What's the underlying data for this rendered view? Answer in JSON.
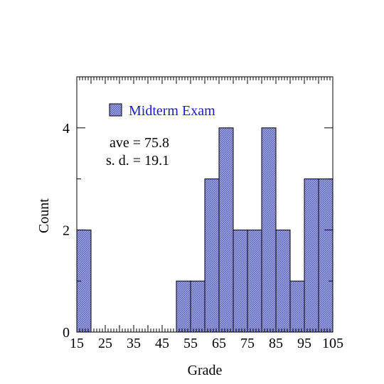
{
  "chart_data": {
    "type": "bar",
    "subtype": "histogram",
    "bins": [
      {
        "x0": 15,
        "x1": 20,
        "count": 2
      },
      {
        "x0": 20,
        "x1": 25,
        "count": 0
      },
      {
        "x0": 25,
        "x1": 30,
        "count": 0
      },
      {
        "x0": 30,
        "x1": 35,
        "count": 0
      },
      {
        "x0": 35,
        "x1": 40,
        "count": 0
      },
      {
        "x0": 40,
        "x1": 45,
        "count": 0
      },
      {
        "x0": 45,
        "x1": 50,
        "count": 0
      },
      {
        "x0": 50,
        "x1": 55,
        "count": 1
      },
      {
        "x0": 55,
        "x1": 60,
        "count": 1
      },
      {
        "x0": 60,
        "x1": 65,
        "count": 3
      },
      {
        "x0": 65,
        "x1": 70,
        "count": 4
      },
      {
        "x0": 70,
        "x1": 75,
        "count": 2
      },
      {
        "x0": 75,
        "x1": 80,
        "count": 2
      },
      {
        "x0": 80,
        "x1": 85,
        "count": 4
      },
      {
        "x0": 85,
        "x1": 90,
        "count": 2
      },
      {
        "x0": 90,
        "x1": 95,
        "count": 1
      },
      {
        "x0": 95,
        "x1": 100,
        "count": 3
      },
      {
        "x0": 100,
        "x1": 105,
        "count": 3
      }
    ],
    "xlabel": "Grade",
    "ylabel": "Count",
    "xlim": [
      15,
      105
    ],
    "ylim": [
      0,
      5
    ],
    "xticks": [
      15,
      25,
      35,
      45,
      55,
      65,
      75,
      85,
      95,
      105
    ],
    "yticks": [
      0,
      2,
      4
    ],
    "legend": {
      "label": "Midterm Exam",
      "position": "top-left",
      "text_color": "#1a1acc"
    },
    "annotations": {
      "ave": "ave = 75.8",
      "sd": "s. d. = 19.1"
    },
    "bar_fill": "#8f94d8",
    "bar_stroke": "#000000"
  }
}
